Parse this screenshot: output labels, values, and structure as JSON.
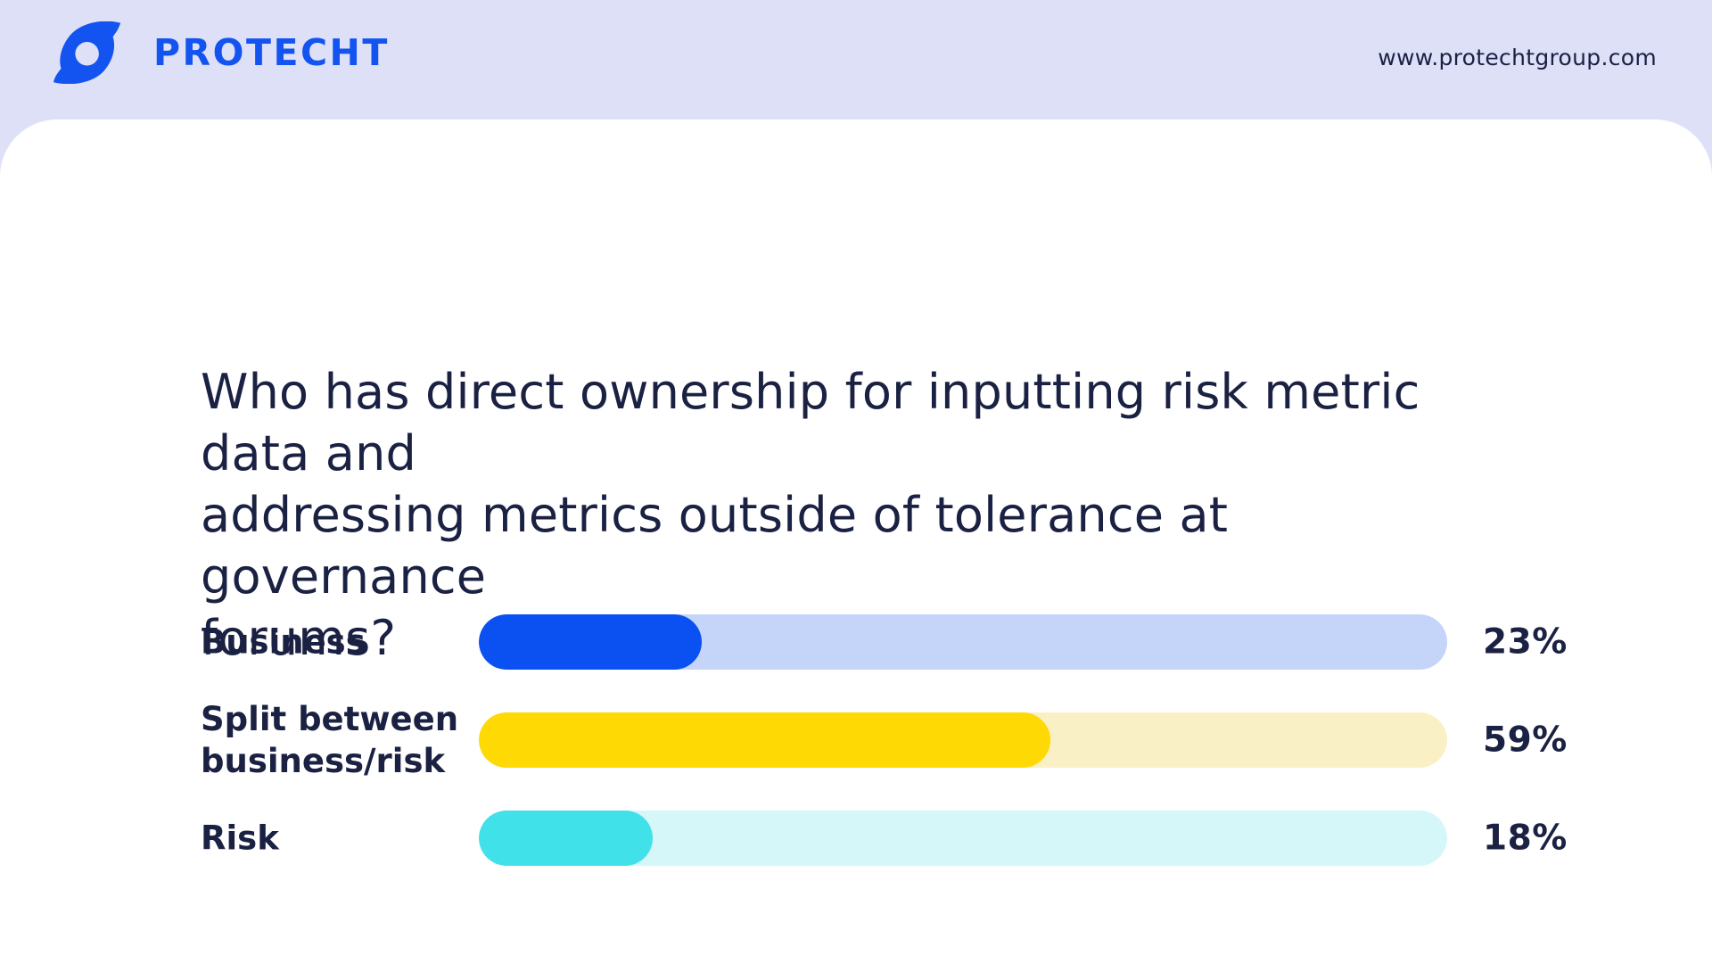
{
  "header": {
    "brand": "PROTECHT",
    "url": "www.protechtgroup.com"
  },
  "question": {
    "lines": [
      "Who has direct ownership for inputting risk metric data and",
      "addressing metrics outside of tolerance at governance",
      "forums?"
    ]
  },
  "chart_data": {
    "type": "bar",
    "orientation": "horizontal",
    "title": "Who has direct ownership for inputting risk metric data and addressing metrics outside of tolerance at governance forums?",
    "categories": [
      "Business",
      "Split between business/risk",
      "Risk"
    ],
    "values": [
      23,
      59,
      18
    ],
    "unit": "%",
    "xlim": [
      0,
      100
    ],
    "grid": false,
    "legend": "none",
    "bars": [
      {
        "label": "Business",
        "label_lines": [
          "Business"
        ],
        "value": 23,
        "display": "23%",
        "fill_color": "#0b51f1",
        "track_color": "#c5d4f9"
      },
      {
        "label": "Split between business/risk",
        "label_lines": [
          "Split between",
          "business/risk"
        ],
        "value": 59,
        "display": "59%",
        "fill_color": "#ffd903",
        "track_color": "#faf0c5"
      },
      {
        "label": "Risk",
        "label_lines": [
          "Risk"
        ],
        "value": 18,
        "display": "18%",
        "fill_color": "#41e1ea",
        "track_color": "#d5f7f9"
      }
    ]
  },
  "colors": {
    "header_bg": "#dee0f8",
    "card_bg": "#ffffff",
    "brand_blue": "#1353f0",
    "navy": "#1a2142"
  }
}
